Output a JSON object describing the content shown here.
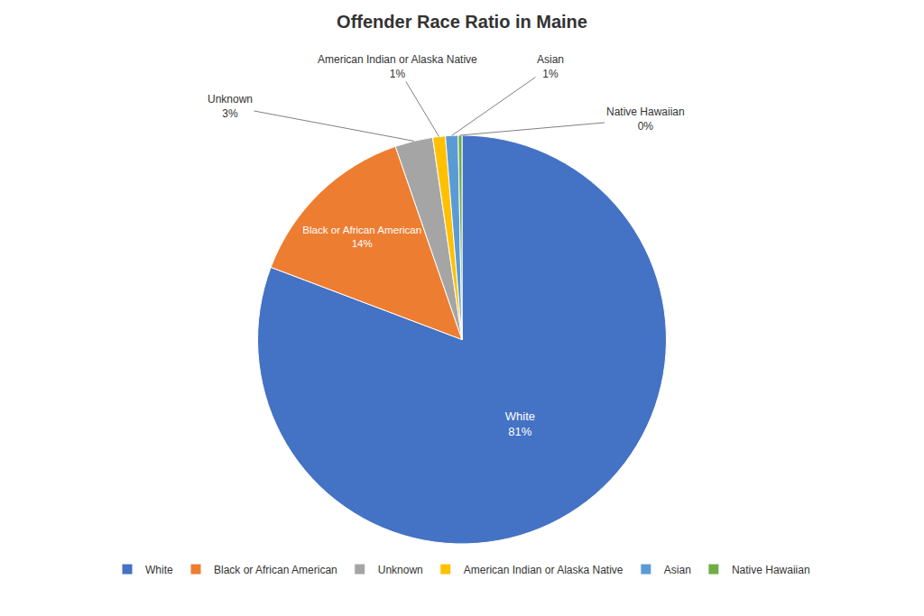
{
  "chart_data": {
    "type": "pie",
    "title": "Offender Race Ratio in Maine",
    "categories": [
      "White",
      "Black or African American",
      "Unknown",
      "American Indian or Alaska Native",
      "Asian",
      "Native Hawaiian"
    ],
    "values": [
      81,
      14,
      3,
      1,
      1,
      0.3
    ],
    "value_labels": [
      "81%",
      "14%",
      "3%",
      "1%",
      "1%",
      "0%"
    ],
    "colors": [
      "#4472C4",
      "#ED7D31",
      "#A5A5A5",
      "#FFC000",
      "#5B9BD5",
      "#70AD47"
    ],
    "data_labels": true,
    "legend": "bottom"
  }
}
